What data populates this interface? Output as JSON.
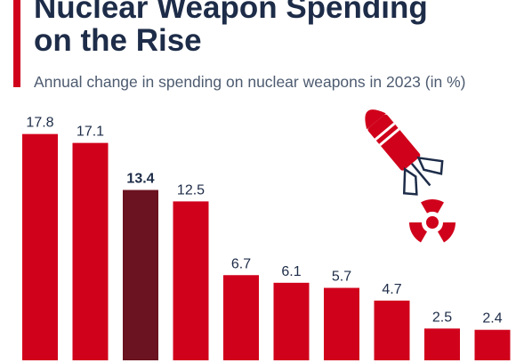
{
  "chart_data": {
    "type": "bar",
    "title": "Nuclear Weapon Spending on the Rise",
    "subtitle": "Annual change in spending on nuclear weapons in 2023 (in %)",
    "values": [
      17.8,
      17.1,
      13.4,
      12.5,
      6.7,
      6.1,
      5.7,
      4.7,
      2.5,
      2.4
    ],
    "colors": [
      "#d0021b",
      "#d0021b",
      "#6b1320",
      "#d0021b",
      "#d0021b",
      "#d0021b",
      "#d0021b",
      "#d0021b",
      "#d0021b",
      "#d0021b"
    ]
  }
}
